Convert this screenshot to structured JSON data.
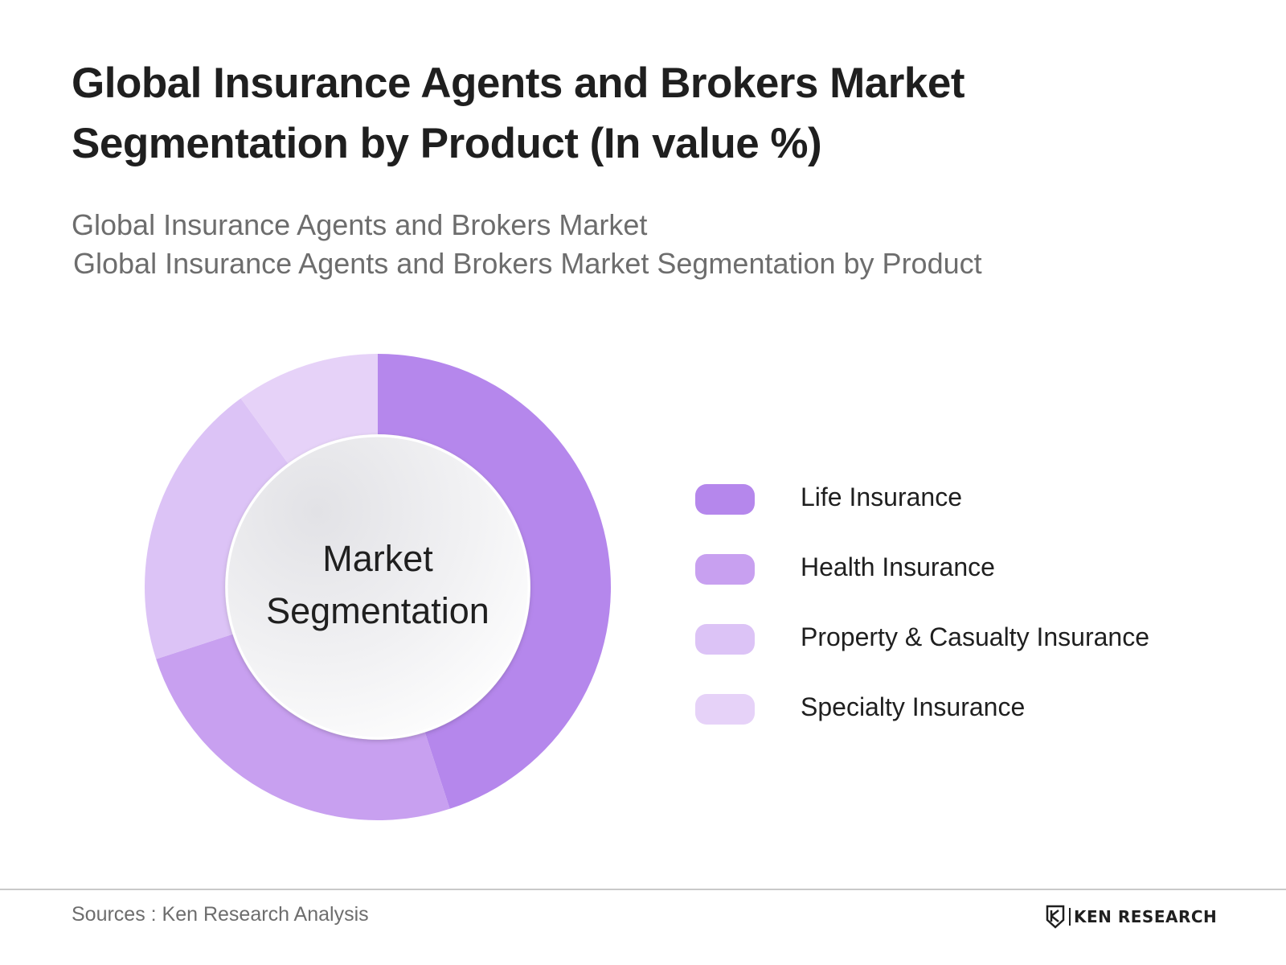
{
  "header": {
    "title": "Global Insurance Agents and Brokers Market Segmentation by Product (In value %)",
    "subtitle_line1": "Global Insurance Agents and Brokers Market",
    "subtitle_line2": "Global Insurance Agents and Brokers Market Segmentation by Product"
  },
  "center_label": {
    "line1": "Market",
    "line2": "Segmentation"
  },
  "chart_data": {
    "type": "pie",
    "variant": "donut",
    "title": "Global Insurance Agents and Brokers Market Segmentation by Product (In value %)",
    "unit": "%",
    "categories": [
      "Life Insurance",
      "Health Insurance",
      "Property & Casualty Insurance",
      "Specialty Insurance"
    ],
    "values": [
      45,
      25,
      20,
      10
    ],
    "colors": [
      "#b587ec",
      "#c8a0f0",
      "#dcc3f6",
      "#e6d2f8"
    ],
    "legend_position": "right"
  },
  "footer": {
    "source": "Sources : Ken Research Analysis",
    "brand": "KEN RESEARCH"
  }
}
